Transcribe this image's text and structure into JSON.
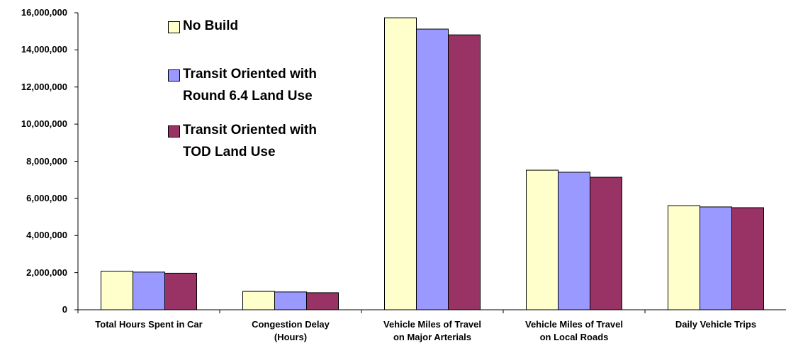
{
  "chart_data": {
    "type": "bar",
    "categories": [
      "Total Hours Spent in Car",
      "Congestion Delay\n(Hours)",
      "Vehicle Miles of Travel\non Major Arterials",
      "Vehicle Miles of Travel\non Local Roads",
      "Daily Vehicle Trips"
    ],
    "series": [
      {
        "name": "No Build",
        "color": "#ffffcc",
        "values": [
          2080000,
          990000,
          15730000,
          7520000,
          5610000
        ]
      },
      {
        "name": "Transit Oriented with\nRound 6.4 Land Use",
        "color": "#9999ff",
        "values": [
          2030000,
          960000,
          15120000,
          7410000,
          5540000
        ]
      },
      {
        "name": "Transit Oriented with\nTOD Land Use",
        "color": "#993366",
        "values": [
          1970000,
          920000,
          14810000,
          7140000,
          5500000
        ]
      }
    ],
    "ylim": [
      0,
      16000000
    ],
    "yticks": [
      0,
      {
        "value": 2000000,
        "label": "2,000,000"
      },
      {
        "value": 4000000,
        "label": "4,000,000"
      },
      {
        "value": 6000000,
        "label": "6,000,000"
      },
      {
        "value": 8000000,
        "label": "8,000,000"
      },
      {
        "value": 10000000,
        "label": "10,000,000"
      },
      {
        "value": 12000000,
        "label": "12,000,000"
      },
      {
        "value": 14000000,
        "label": "14,000,000"
      },
      {
        "value": 16000000,
        "label": "16,000,000"
      }
    ],
    "grid": false,
    "legend": "top-left"
  }
}
